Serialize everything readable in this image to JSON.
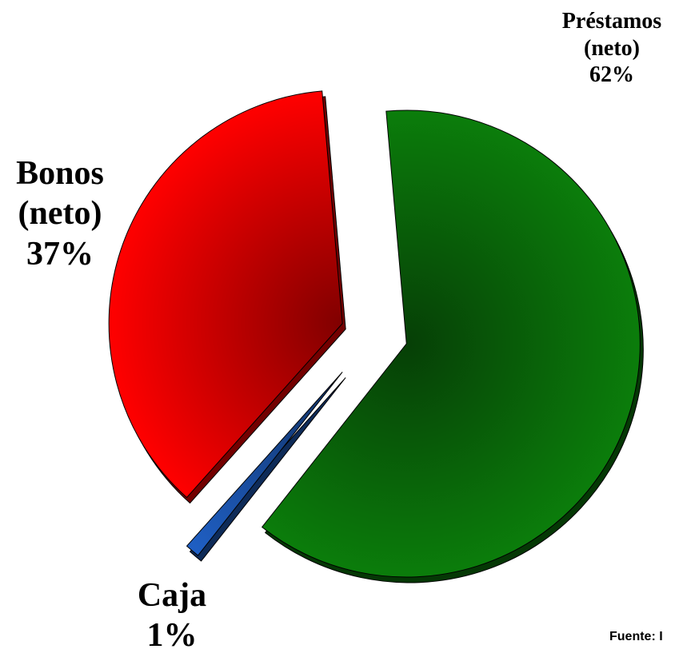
{
  "chart_data": {
    "type": "pie",
    "categories": [
      "Préstamos (neto)",
      "Caja",
      "Bonos (neto)"
    ],
    "values": [
      62,
      1,
      37
    ],
    "value_labels": [
      "62%",
      "1%",
      "37%"
    ],
    "colors": [
      "#0b7d0b",
      "#1f5fc4",
      "#ff0000"
    ],
    "source": "Fuente: I"
  }
}
